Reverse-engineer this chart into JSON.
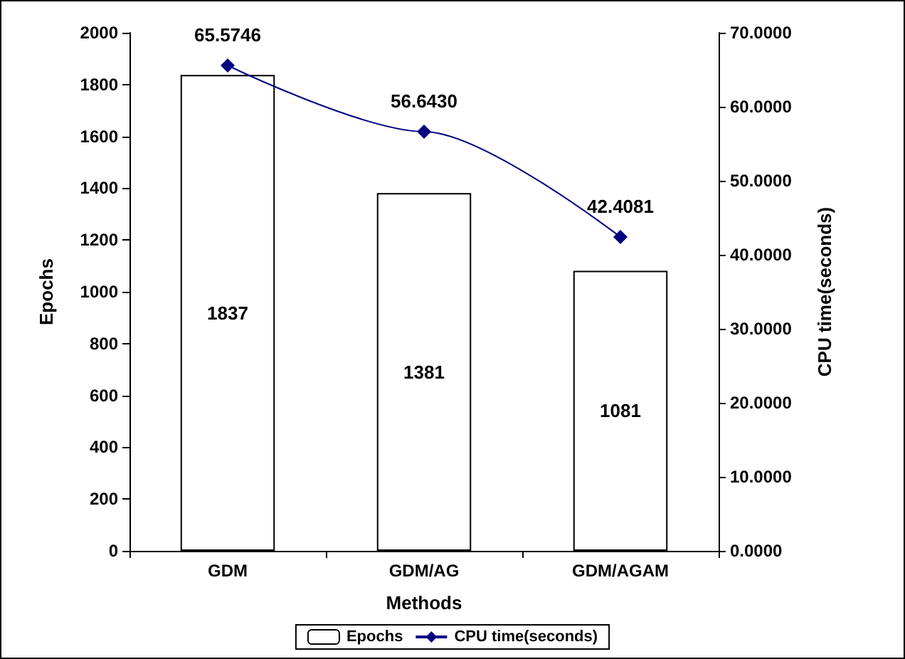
{
  "chart_data": {
    "type": "bar",
    "xlabel": "Methods",
    "ylabel": "Epochs",
    "y2label": "CPU time(seconds)",
    "categories": [
      "GDM",
      "GDM/AG",
      "GDM/AGAM"
    ],
    "series": [
      {
        "name": "Epochs",
        "color": "#ffffff",
        "values": [
          1837,
          1381,
          1081
        ],
        "value_labels": [
          "1837",
          "1381",
          "1081"
        ]
      },
      {
        "name": "CPU time(seconds)",
        "type": "line",
        "axis": "y2",
        "color": "#000080",
        "marker": "diamond",
        "values": [
          65.5746,
          56.643,
          42.4081
        ],
        "value_labels": [
          "65.5746",
          "56.6430",
          "42.4081"
        ]
      }
    ],
    "ylim": [
      0,
      2000
    ],
    "yticks": [
      0,
      200,
      400,
      600,
      800,
      1000,
      1200,
      1400,
      1600,
      1800,
      2000
    ],
    "y2lim": [
      0,
      70
    ],
    "y2ticks": [
      {
        "value": 0,
        "label": "0.0000"
      },
      {
        "value": 10,
        "label": "10.0000"
      },
      {
        "value": 20,
        "label": "20.0000"
      },
      {
        "value": 30,
        "label": "30.0000"
      },
      {
        "value": 40,
        "label": "40.0000"
      },
      {
        "value": 50,
        "label": "50.0000"
      },
      {
        "value": 60,
        "label": "60.0000"
      },
      {
        "value": 70,
        "label": "70.0000"
      }
    ],
    "grid": false,
    "legend": "bottom"
  }
}
